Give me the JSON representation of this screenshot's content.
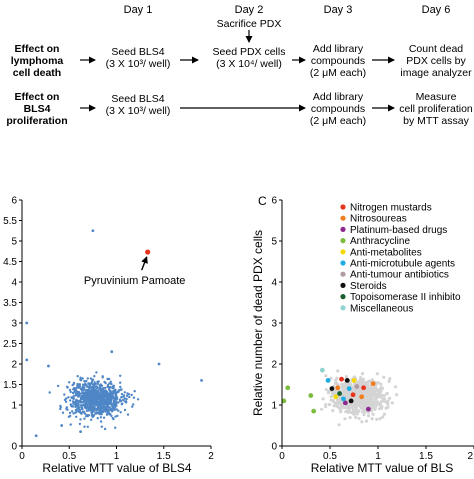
{
  "schematic": {
    "days": [
      "Day 1",
      "Day 2",
      "Day 3",
      "Day 6"
    ],
    "sacrifice": "Sacrifice PDX",
    "row1": {
      "label": [
        "Effect on",
        "lymphoma",
        "cell death"
      ],
      "step1": [
        "Seed BLS4",
        "(3 X 10³/ well)"
      ],
      "step2": [
        "Seed PDX cells",
        "(3 X 10⁴/ well)"
      ],
      "step3": [
        "Add library",
        "compounds",
        "(2 μM each)"
      ],
      "step4": [
        "Count dead",
        "PDX cells by",
        "image analyzer"
      ]
    },
    "row2": {
      "label": [
        "Effect on",
        "BLS4",
        "proliferation"
      ],
      "step1": [
        "Seed BLS4",
        "(3 X 10³/ well)"
      ],
      "step3": [
        "Add library",
        "compounds",
        "(2 μM each)"
      ],
      "step4": [
        "Measure",
        "cell proliferation",
        "by MTT assay"
      ]
    }
  },
  "chart_data": [
    {
      "type": "scatter",
      "panel": "",
      "xlabel": "Relative MTT value of BLS4",
      "ylabel": "",
      "xlim": [
        0,
        2
      ],
      "ylim": [
        0,
        6
      ],
      "xticks": [
        "0",
        "0.5",
        "1",
        "1.5",
        "2"
      ],
      "yticks": [
        "0",
        "1",
        "1.5",
        "2",
        "2.5",
        "3",
        "3.5",
        "4",
        "4.5",
        "5",
        "5.5",
        "6"
      ],
      "series_color": "#4f86c6",
      "highlight": {
        "label": "Pyruvinium Pamoate",
        "x": 1.33,
        "y": 4.73,
        "color": "#e8341c"
      },
      "outliers": [
        [
          0.75,
          5.25
        ],
        [
          0.05,
          3.0
        ],
        [
          0.95,
          2.3
        ],
        [
          1.9,
          1.6
        ],
        [
          0.15,
          0.25
        ],
        [
          0.42,
          0.5
        ],
        [
          0.62,
          0.35
        ],
        [
          0.05,
          2.1
        ],
        [
          1.45,
          2.0
        ],
        [
          0.28,
          1.95
        ]
      ]
    },
    {
      "type": "scatter",
      "panel": "C",
      "xlabel": "Relative MTT value of BLS",
      "ylabel": "Relative number of dead PDX cells",
      "xlim": [
        0,
        2
      ],
      "ylim": [
        0,
        6
      ],
      "xticks": [
        "0",
        "0.5",
        "1",
        "1.5",
        "2"
      ],
      "yticks": [
        "0",
        "1",
        "2",
        "3",
        "4",
        "5",
        "6"
      ],
      "background_color": "#d4d4d4",
      "legend": [
        {
          "name": "Nitrogen mustards",
          "color": "#e8341c"
        },
        {
          "name": "Nitrosoureas",
          "color": "#f07d20"
        },
        {
          "name": "Platinum-based drugs",
          "color": "#8e2a8e"
        },
        {
          "name": "Anthracycline",
          "color": "#7dbd3e"
        },
        {
          "name": "Anti-metabolites",
          "color": "#f5d800"
        },
        {
          "name": "Anti-microtubule agents",
          "color": "#1eaee4"
        },
        {
          "name": "Anti-tumour antibiotics",
          "color": "#b09aa3"
        },
        {
          "name": "Steroids",
          "color": "#111111"
        },
        {
          "name": "Topoisomerase II inhibito",
          "color": "#1a5e32"
        },
        {
          "name": "Miscellaneous",
          "color": "#8fd3d0"
        }
      ],
      "points": [
        {
          "x": 0.62,
          "y": 1.63,
          "c": 0
        },
        {
          "x": 0.85,
          "y": 1.42,
          "c": 0
        },
        {
          "x": 0.74,
          "y": 1.25,
          "c": 0
        },
        {
          "x": 0.83,
          "y": 1.2,
          "c": 1
        },
        {
          "x": 0.95,
          "y": 1.52,
          "c": 1
        },
        {
          "x": 0.58,
          "y": 1.42,
          "c": 1
        },
        {
          "x": 0.9,
          "y": 0.9,
          "c": 2
        },
        {
          "x": 0.66,
          "y": 1.05,
          "c": 2
        },
        {
          "x": 0.02,
          "y": 1.1,
          "c": 3
        },
        {
          "x": 0.3,
          "y": 1.23,
          "c": 3
        },
        {
          "x": 0.33,
          "y": 0.85,
          "c": 3
        },
        {
          "x": 0.06,
          "y": 1.42,
          "c": 3
        },
        {
          "x": 0.56,
          "y": 1.2,
          "c": 4
        },
        {
          "x": 0.75,
          "y": 1.6,
          "c": 4
        },
        {
          "x": 0.48,
          "y": 1.6,
          "c": 5
        },
        {
          "x": 0.7,
          "y": 1.4,
          "c": 5
        },
        {
          "x": 0.64,
          "y": 1.15,
          "c": 5
        },
        {
          "x": 0.78,
          "y": 1.45,
          "c": 6
        },
        {
          "x": 0.52,
          "y": 1.4,
          "c": 7
        },
        {
          "x": 0.68,
          "y": 1.6,
          "c": 7
        },
        {
          "x": 0.72,
          "y": 1.1,
          "c": 7
        },
        {
          "x": 0.6,
          "y": 1.28,
          "c": 8
        },
        {
          "x": 0.42,
          "y": 1.85,
          "c": 9
        }
      ]
    }
  ]
}
